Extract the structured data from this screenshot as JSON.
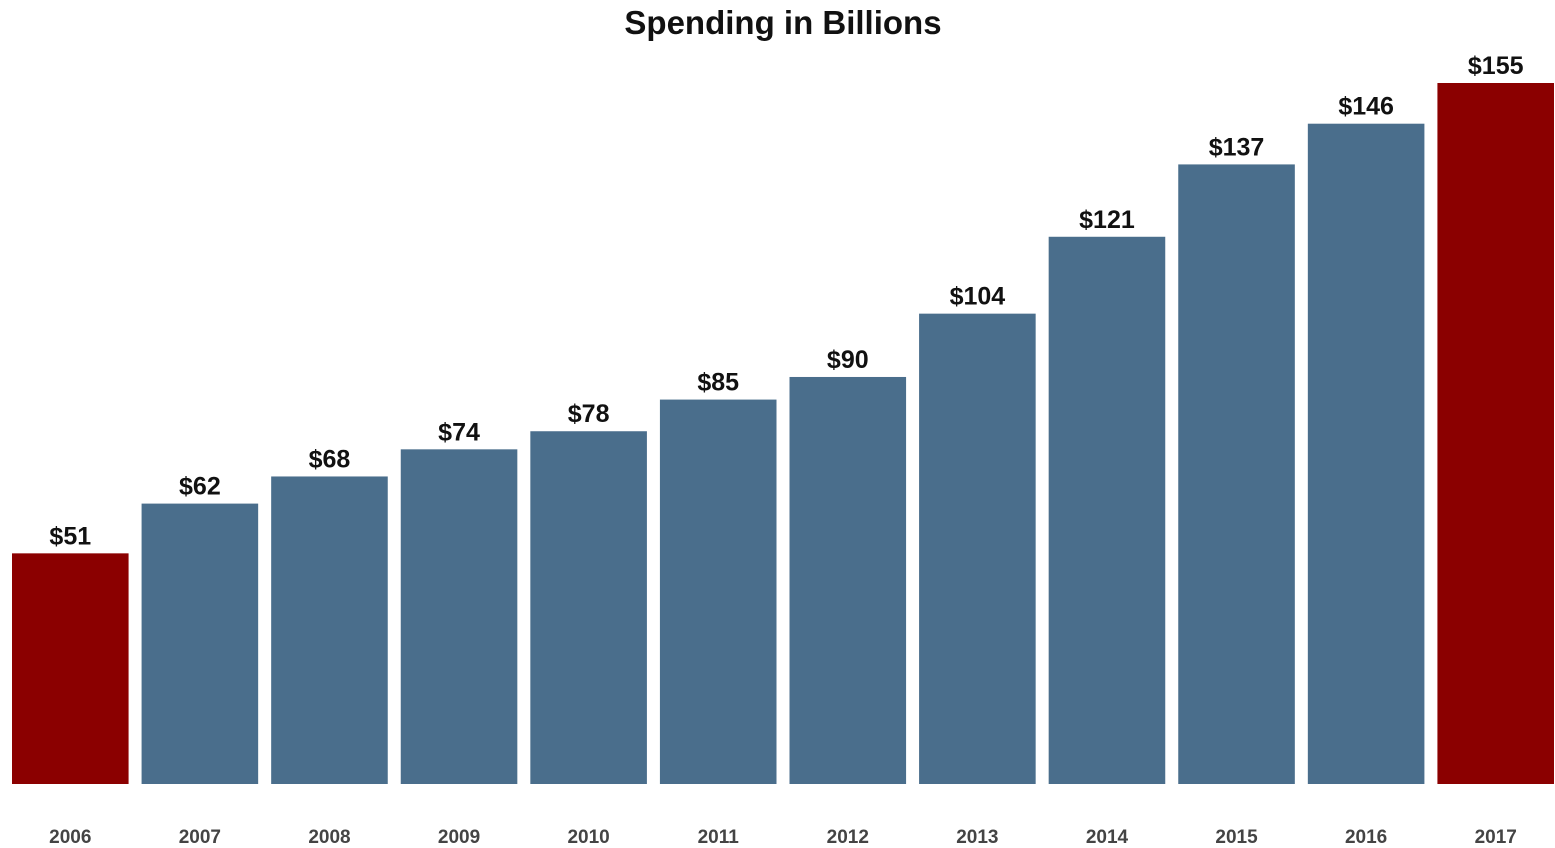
{
  "chart_data": {
    "type": "bar",
    "title": "Spending in Billions",
    "xlabel": "",
    "ylabel": "",
    "categories": [
      "2006",
      "2007",
      "2008",
      "2009",
      "2010",
      "2011",
      "2012",
      "2013",
      "2014",
      "2015",
      "2016",
      "2017"
    ],
    "values": [
      51,
      62,
      68,
      74,
      78,
      85,
      90,
      104,
      121,
      137,
      146,
      155
    ],
    "data_labels": [
      "$51",
      "$62",
      "$68",
      "$74",
      "$78",
      "$85",
      "$90",
      "$104",
      "$121",
      "$137",
      "$146",
      "$155"
    ],
    "ylim": [
      0,
      155
    ],
    "grid": false,
    "legend": "none",
    "colors": {
      "default": "#4a6e8c",
      "highlight": "#8b0000"
    },
    "highlighted_categories": [
      "2006",
      "2017"
    ]
  }
}
